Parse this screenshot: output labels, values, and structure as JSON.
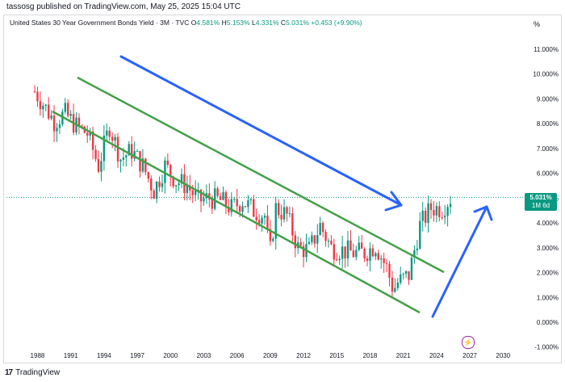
{
  "header": {
    "published": "tassosg published on TradingView.com, May 25, 2025 15:04 UTC"
  },
  "legend": {
    "symbol": "United States 30 Year Government Bonds Yield · 3M · TVC",
    "o_label": "O",
    "o_value": "4.581%",
    "h_label": "H",
    "h_value": "5.153%",
    "l_label": "L",
    "l_value": "4.331%",
    "c_label": "C",
    "c_value": "5.031%",
    "change": "+0.453 (+9.90%)"
  },
  "percent_button": "%",
  "price_tag": {
    "price": "5.031%",
    "time": "1M 6d"
  },
  "footer": {
    "logo": "17",
    "brand": "TradingView"
  },
  "colors": {
    "up": "#089981",
    "down": "#f23645",
    "channel": "#43a047",
    "arrow": "#2962ff",
    "price_line": "#089981"
  },
  "chart_data": {
    "type": "candlestick",
    "title": "United States 30 Year Government Bonds Yield · 3M · TVC",
    "ylim": [
      -1,
      11.5
    ],
    "y_ticks": [
      "11.000%",
      "10.000%",
      "9.000%",
      "8.000%",
      "7.000%",
      "6.000%",
      "5.000%",
      "4.000%",
      "3.000%",
      "2.000%",
      "1.000%",
      "0.000%",
      "-1.000%"
    ],
    "x_ticks": [
      "1988",
      "1991",
      "1994",
      "1997",
      "2000",
      "2003",
      "2006",
      "2009",
      "2012",
      "2015",
      "2018",
      "2021",
      "2024",
      "2027",
      "2030"
    ],
    "x_range": [
      1985.2,
      2031.8
    ],
    "current_price": 5.031,
    "series": [
      {
        "x": [
          1987.75,
          1988.5,
          1989.5,
          1990.5,
          1991.5,
          1992.5,
          1993.5,
          1994.5,
          1995.5,
          1996.5,
          1997.5,
          1998.5,
          1999.5,
          2000.5,
          2001.5,
          2002.5,
          2003.5,
          2004.5,
          2005.5,
          2006.5,
          2007.5,
          2008.5,
          2008.95,
          2009.5,
          2010.5,
          2011.5,
          2012.5,
          2013.5,
          2014.5,
          2015.5,
          2016.5,
          2017.5,
          2018.5,
          2019.5,
          2020.1,
          2020.5,
          2021.5,
          2022.5,
          2023.5,
          2024.5,
          2025.3
        ],
        "values": [
          9.3,
          8.8,
          8.1,
          8.4,
          7.9,
          7.6,
          6.3,
          7.9,
          6.6,
          6.9,
          6.3,
          5.3,
          6.3,
          5.7,
          5.5,
          4.9,
          5.0,
          4.9,
          4.6,
          4.9,
          4.5,
          4.3,
          2.7,
          4.6,
          4.3,
          3.0,
          2.9,
          3.9,
          3.0,
          2.9,
          2.8,
          2.8,
          3.1,
          2.2,
          1.3,
          1.6,
          1.9,
          3.9,
          4.6,
          4.6,
          5.031
        ]
      }
    ]
  }
}
